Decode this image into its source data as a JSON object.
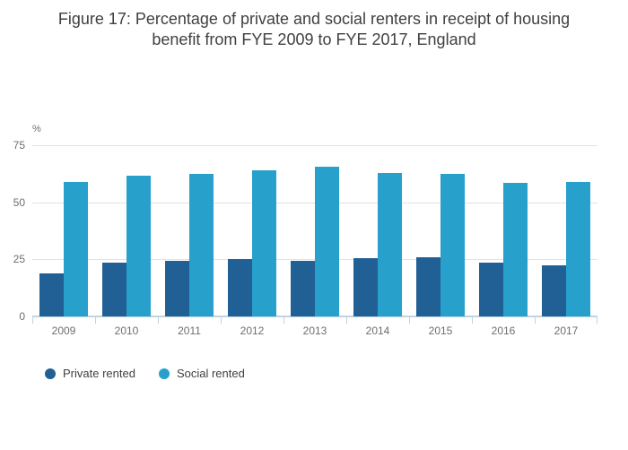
{
  "chart_data": {
    "type": "bar",
    "title": "Figure 17: Percentage of private and social renters in receipt of housing benefit from FYE 2009 to FYE 2017, England",
    "unit_label": "%",
    "categories": [
      "2009",
      "2010",
      "2011",
      "2012",
      "2013",
      "2014",
      "2015",
      "2016",
      "2017"
    ],
    "series": [
      {
        "name": "Private rented",
        "color": "#206095",
        "values": [
          19,
          23.5,
          24.5,
          25,
          24.5,
          25.5,
          26,
          23.5,
          22.5
        ]
      },
      {
        "name": "Social rented",
        "color": "#27a0cc",
        "values": [
          59,
          61.5,
          62.5,
          64,
          65.5,
          63,
          62.5,
          58.5,
          59
        ]
      }
    ],
    "xlabel": "",
    "ylabel": "%",
    "ylim": [
      0,
      75
    ],
    "yticks": [
      0,
      25,
      50,
      75
    ],
    "grid": true,
    "legend_position": "bottom-left"
  },
  "colors": {
    "background": "#ffffff",
    "gridline": "#e2e2e2",
    "axis_line": "#c2d2e0",
    "title_text": "#404041",
    "tick_text": "#6e6e6e",
    "legend_text": "#414042"
  }
}
